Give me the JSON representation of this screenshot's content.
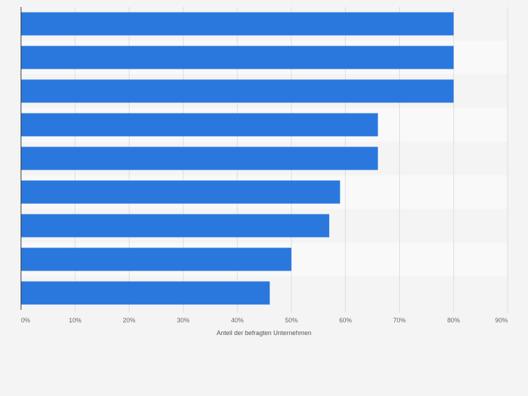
{
  "chart_data": {
    "type": "bar",
    "orientation": "horizontal",
    "categories": [
      "",
      "",
      "",
      "",
      "",
      "",
      "",
      "",
      ""
    ],
    "values": [
      80,
      80,
      80,
      66,
      66,
      59,
      57,
      50,
      46
    ],
    "title": "",
    "xlabel": "Anteil der befragten Unternehmen",
    "ylabel": "",
    "xlim": [
      0,
      90
    ],
    "xticks": [
      0,
      10,
      20,
      30,
      40,
      50,
      60,
      70,
      80,
      90
    ],
    "xtick_labels": [
      "0%",
      "10%",
      "20%",
      "30%",
      "40%",
      "50%",
      "60%",
      "70%",
      "80%",
      "90%"
    ],
    "grid": true,
    "legend": "none",
    "colors": {
      "bar": "#2a78de",
      "background": "#f4f4f4",
      "band_alt": "#f9f9f9",
      "gridline": "#dddddd",
      "axis": "#333333",
      "tick_text": "#666666"
    }
  }
}
